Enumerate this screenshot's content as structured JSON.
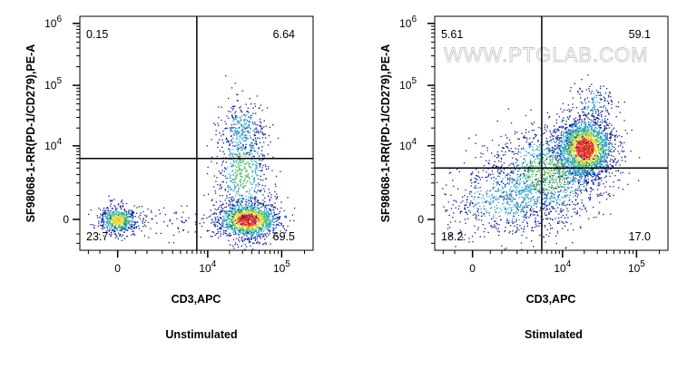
{
  "watermark": "WWW.PTGLAB.COM",
  "colors": {
    "density_low": "#0a1a8c",
    "density_mid1": "#2aa0c8",
    "density_mid2": "#4cc06a",
    "density_mid3": "#e8d838",
    "density_high": "#e03020",
    "gate_line": "#000000"
  },
  "chart_data": [
    {
      "type": "scatter",
      "subtype": "flow-cytometry-density-dot-plot",
      "xlabel": "CD3,APC",
      "ylabel": "SF98068-1-RR(PD-1/CD279),PE-A",
      "caption": "Unstimulated",
      "x_ticks": [
        {
          "label": "0",
          "value": 0
        },
        {
          "label": "10",
          "exp": "4",
          "value": 10000
        },
        {
          "label": "10",
          "exp": "5",
          "value": 100000
        }
      ],
      "y_ticks": [
        {
          "label": "0",
          "value": 0
        },
        {
          "label": "10",
          "exp": "4",
          "value": 10000
        },
        {
          "label": "10",
          "exp": "5",
          "value": 100000
        },
        {
          "label": "10",
          "exp": "6",
          "value": 1000000
        }
      ],
      "gate": {
        "x": 7000,
        "y": 6000
      },
      "quadrants": {
        "upper_left": "0.15",
        "upper_right": "6.64",
        "lower_left": "23.7",
        "lower_right": "69.5"
      },
      "populations": [
        {
          "x": 0,
          "y": 0,
          "sx": 0.25,
          "sy": 0.22,
          "n": 600,
          "peak": 0.75
        },
        {
          "x": 35000,
          "y": 0,
          "sx": 0.42,
          "sy": 0.3,
          "n": 1500,
          "peak": 1.0
        },
        {
          "x": 30000,
          "y": 3500,
          "sx": 0.33,
          "sy": 0.9,
          "n": 650,
          "peak": 0.5
        },
        {
          "x": 30000,
          "y": 20000,
          "sx": 0.3,
          "sy": 0.5,
          "n": 220,
          "peak": 0.3
        },
        {
          "x": 2000,
          "y": 0,
          "sx": 0.8,
          "sy": 0.25,
          "n": 90,
          "peak": 0.1
        }
      ]
    },
    {
      "type": "scatter",
      "subtype": "flow-cytometry-density-dot-plot",
      "xlabel": "CD3,APC",
      "ylabel": "SF98068-1-RR(PD-1/CD279),PE-A",
      "caption": "Stimulated",
      "x_ticks": [
        {
          "label": "0",
          "value": 0
        },
        {
          "label": "10",
          "exp": "4",
          "value": 10000
        },
        {
          "label": "10",
          "exp": "5",
          "value": 100000
        }
      ],
      "y_ticks": [
        {
          "label": "0",
          "value": 0
        },
        {
          "label": "10",
          "exp": "4",
          "value": 10000
        },
        {
          "label": "10",
          "exp": "5",
          "value": 100000
        },
        {
          "label": "10",
          "exp": "6",
          "value": 1000000
        }
      ],
      "gate": {
        "x": 5000,
        "y": 4000
      },
      "quadrants": {
        "upper_left": "5.61",
        "upper_right": "59.1",
        "lower_left": "18.2",
        "lower_right": "17.0"
      },
      "populations": [
        {
          "x": 20000,
          "y": 9000,
          "sx": 0.38,
          "sy": 0.5,
          "n": 2200,
          "peak": 1.0
        },
        {
          "x": 6000,
          "y": 3000,
          "sx": 0.7,
          "sy": 0.75,
          "n": 1200,
          "peak": 0.55
        },
        {
          "x": 1200,
          "y": 800,
          "sx": 0.8,
          "sy": 0.7,
          "n": 700,
          "peak": 0.3
        },
        {
          "x": 25000,
          "y": 50000,
          "sx": 0.3,
          "sy": 0.35,
          "n": 150,
          "peak": 0.25
        }
      ]
    }
  ]
}
